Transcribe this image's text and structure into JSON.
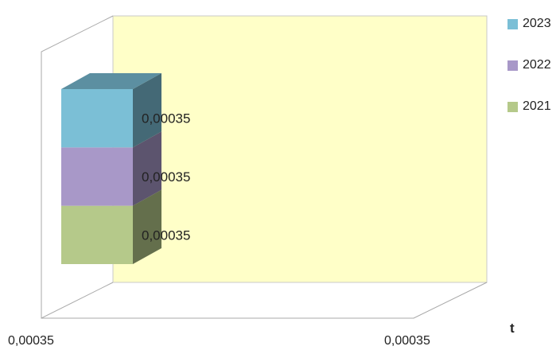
{
  "chart_data": {
    "type": "bar",
    "stacked": true,
    "three_d": true,
    "categories": [
      "0,00035"
    ],
    "series": [
      {
        "name": "2021",
        "values": [
          0.00035
        ],
        "color": "#b5c98a"
      },
      {
        "name": "2022",
        "values": [
          0.00035
        ],
        "color": "#a898c8"
      },
      {
        "name": "2023",
        "values": [
          0.00035
        ],
        "color": "#7bbfd6"
      }
    ],
    "data_labels": [
      "0,00035",
      "0,00035",
      "0,00035"
    ],
    "x_tick_labels": [
      "0,00035",
      "0,00035"
    ],
    "xlabel": "t",
    "legend_position": "top-right",
    "plot_background": "#ffffc8",
    "grid": false
  }
}
